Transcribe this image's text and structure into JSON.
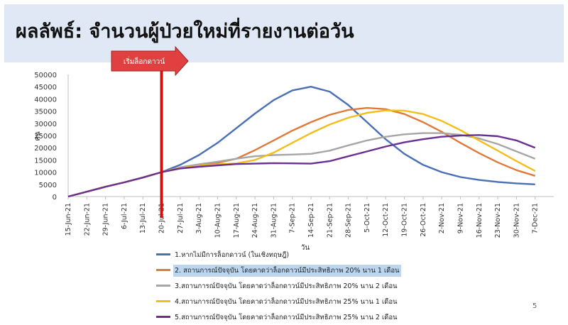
{
  "slide": {
    "title": "ผลลัพธ์: จำนวนผู้ป่วยใหม่ที่รายงานต่อวัน",
    "page_number": "5"
  },
  "colors": {
    "title_band": "#dfe8f4",
    "lockdown_marker": "#cc1111",
    "arrow_fill": "#e04040",
    "series": [
      "#4a6fb5",
      "#e07a3a",
      "#a6a6a6",
      "#f2be1a",
      "#6a2f8f"
    ]
  },
  "chart_data": {
    "type": "line",
    "xlabel": "วัน",
    "ylabel": "คน",
    "ylim": [
      0,
      50000
    ],
    "yticks": [
      0,
      5000,
      10000,
      15000,
      20000,
      25000,
      30000,
      35000,
      40000,
      45000,
      50000
    ],
    "x_tick_labels": [
      "15-Jun-21",
      "22-Jun-21",
      "29-Jun-21",
      "6-Jul-21",
      "13-Jul-21",
      "20-Jul-21",
      "27-Jul-21",
      "3-Aug-21",
      "10-Aug-21",
      "17-Aug-21",
      "24-Aug-21",
      "31-Aug-21",
      "7-Sep-21",
      "14-Sep-21",
      "21-Sep-21",
      "28-Sep-21",
      "5-Oct-21",
      "12-Oct-21",
      "19-Oct-21",
      "26-Oct-21",
      "2-Nov-21",
      "9-Nov-21",
      "16-Nov-21",
      "23-Nov-21",
      "30-Nov-21",
      "7-Dec-21"
    ],
    "annotation": {
      "label": "เริ่มล็อกดาวน์",
      "x": "20-Jul-21"
    },
    "legend_position": "bottom",
    "grid": false,
    "series": [
      {
        "name": "1.หากไม่มีการล็อกดาวน์ (ในเชิงทฤษฎี)",
        "points": [
          [
            "15-Jun-21",
            0
          ],
          [
            "22-Jun-21",
            2000
          ],
          [
            "29-Jun-21",
            4000
          ],
          [
            "6-Jul-21",
            5800
          ],
          [
            "13-Jul-21",
            7800
          ],
          [
            "20-Jul-21",
            10000
          ],
          [
            "27-Jul-21",
            13000
          ],
          [
            "3-Aug-21",
            17000
          ],
          [
            "10-Aug-21",
            22000
          ],
          [
            "17-Aug-21",
            28000
          ],
          [
            "24-Aug-21",
            34000
          ],
          [
            "31-Aug-21",
            39500
          ],
          [
            "7-Sep-21",
            43500
          ],
          [
            "14-Sep-21",
            45000
          ],
          [
            "21-Sep-21",
            43000
          ],
          [
            "28-Sep-21",
            37500
          ],
          [
            "5-Oct-21",
            30500
          ],
          [
            "12-Oct-21",
            23500
          ],
          [
            "19-Oct-21",
            17500
          ],
          [
            "26-Oct-21",
            13000
          ],
          [
            "2-Nov-21",
            10000
          ],
          [
            "9-Nov-21",
            8000
          ],
          [
            "16-Nov-21",
            6800
          ],
          [
            "23-Nov-21",
            6000
          ],
          [
            "30-Nov-21",
            5400
          ],
          [
            "7-Dec-21",
            5000
          ]
        ]
      },
      {
        "name": "2. สถานการณ์ปัจจุบัน โดยคาดว่าล็อกดาวน์มีประสิทธิภาพ 20% นาน 1 เดือน",
        "points": [
          [
            "15-Jun-21",
            0
          ],
          [
            "22-Jun-21",
            2000
          ],
          [
            "29-Jun-21",
            4000
          ],
          [
            "6-Jul-21",
            5800
          ],
          [
            "13-Jul-21",
            7800
          ],
          [
            "20-Jul-21",
            10000
          ],
          [
            "27-Jul-21",
            11800
          ],
          [
            "3-Aug-21",
            12800
          ],
          [
            "10-Aug-21",
            13800
          ],
          [
            "17-Aug-21",
            15500
          ],
          [
            "24-Aug-21",
            19000
          ],
          [
            "31-Aug-21",
            23000
          ],
          [
            "7-Sep-21",
            27000
          ],
          [
            "14-Sep-21",
            30500
          ],
          [
            "21-Sep-21",
            33500
          ],
          [
            "28-Sep-21",
            35500
          ],
          [
            "5-Oct-21",
            36300
          ],
          [
            "12-Oct-21",
            35800
          ],
          [
            "19-Oct-21",
            33800
          ],
          [
            "26-Oct-21",
            30500
          ],
          [
            "2-Nov-21",
            26500
          ],
          [
            "9-Nov-21",
            22000
          ],
          [
            "16-Nov-21",
            17800
          ],
          [
            "23-Nov-21",
            14000
          ],
          [
            "30-Nov-21",
            10800
          ],
          [
            "7-Dec-21",
            8500
          ]
        ]
      },
      {
        "name": "3.สถานการณ์ปัจจุบัน โดยคาดว่าล็อกดาวน์มีประสิทธิภาพ 20% นาน 2 เดือน",
        "points": [
          [
            "15-Jun-21",
            0
          ],
          [
            "22-Jun-21",
            2000
          ],
          [
            "29-Jun-21",
            4000
          ],
          [
            "6-Jul-21",
            5800
          ],
          [
            "13-Jul-21",
            7800
          ],
          [
            "20-Jul-21",
            10000
          ],
          [
            "27-Jul-21",
            12000
          ],
          [
            "3-Aug-21",
            13200
          ],
          [
            "10-Aug-21",
            14300
          ],
          [
            "17-Aug-21",
            15500
          ],
          [
            "24-Aug-21",
            16500
          ],
          [
            "31-Aug-21",
            17000
          ],
          [
            "7-Sep-21",
            17200
          ],
          [
            "14-Sep-21",
            17500
          ],
          [
            "21-Sep-21",
            18800
          ],
          [
            "28-Sep-21",
            21000
          ],
          [
            "5-Oct-21",
            23000
          ],
          [
            "12-Oct-21",
            24500
          ],
          [
            "19-Oct-21",
            25500
          ],
          [
            "26-Oct-21",
            26000
          ],
          [
            "2-Nov-21",
            26000
          ],
          [
            "9-Nov-21",
            25300
          ],
          [
            "16-Nov-21",
            23800
          ],
          [
            "23-Nov-21",
            21500
          ],
          [
            "30-Nov-21",
            18500
          ],
          [
            "7-Dec-21",
            15500
          ]
        ]
      },
      {
        "name": "4.สถานการณ์ปัจจุบัน โดยคาดว่าล็อกดาวน์มีประสิทธิภาพ 25% นาน 1 เดือน",
        "points": [
          [
            "15-Jun-21",
            0
          ],
          [
            "22-Jun-21",
            2000
          ],
          [
            "29-Jun-21",
            4000
          ],
          [
            "6-Jul-21",
            5800
          ],
          [
            "13-Jul-21",
            7800
          ],
          [
            "20-Jul-21",
            10000
          ],
          [
            "27-Jul-21",
            11700
          ],
          [
            "3-Aug-21",
            12600
          ],
          [
            "10-Aug-21",
            13200
          ],
          [
            "17-Aug-21",
            13600
          ],
          [
            "24-Aug-21",
            15000
          ],
          [
            "31-Aug-21",
            18000
          ],
          [
            "7-Sep-21",
            22000
          ],
          [
            "14-Sep-21",
            26000
          ],
          [
            "21-Sep-21",
            29500
          ],
          [
            "28-Sep-21",
            32300
          ],
          [
            "5-Oct-21",
            34300
          ],
          [
            "12-Oct-21",
            35300
          ],
          [
            "19-Oct-21",
            35200
          ],
          [
            "26-Oct-21",
            33800
          ],
          [
            "2-Nov-21",
            31000
          ],
          [
            "9-Nov-21",
            27200
          ],
          [
            "16-Nov-21",
            23000
          ],
          [
            "23-Nov-21",
            18800
          ],
          [
            "30-Nov-21",
            14500
          ],
          [
            "7-Dec-21",
            10500
          ]
        ]
      },
      {
        "name": "5.สถานการณ์ปัจจุบัน โดยคาดว่าล็อกดาวน์มีประสิทธิภาพ 25% นาน 2 เดือน",
        "points": [
          [
            "15-Jun-21",
            0
          ],
          [
            "22-Jun-21",
            2000
          ],
          [
            "29-Jun-21",
            4000
          ],
          [
            "6-Jul-21",
            5800
          ],
          [
            "13-Jul-21",
            7800
          ],
          [
            "20-Jul-21",
            10000
          ],
          [
            "27-Jul-21",
            11500
          ],
          [
            "3-Aug-21",
            12200
          ],
          [
            "10-Aug-21",
            12800
          ],
          [
            "17-Aug-21",
            13300
          ],
          [
            "24-Aug-21",
            13500
          ],
          [
            "31-Aug-21",
            13700
          ],
          [
            "7-Sep-21",
            13600
          ],
          [
            "14-Sep-21",
            13500
          ],
          [
            "21-Sep-21",
            14500
          ],
          [
            "28-Sep-21",
            16500
          ],
          [
            "5-Oct-21",
            18500
          ],
          [
            "12-Oct-21",
            20500
          ],
          [
            "19-Oct-21",
            22200
          ],
          [
            "26-Oct-21",
            23500
          ],
          [
            "2-Nov-21",
            24500
          ],
          [
            "9-Nov-21",
            25000
          ],
          [
            "16-Nov-21",
            25200
          ],
          [
            "23-Nov-21",
            24700
          ],
          [
            "30-Nov-21",
            23000
          ],
          [
            "7-Dec-21",
            20000
          ]
        ]
      }
    ],
    "highlighted_series": 1
  }
}
